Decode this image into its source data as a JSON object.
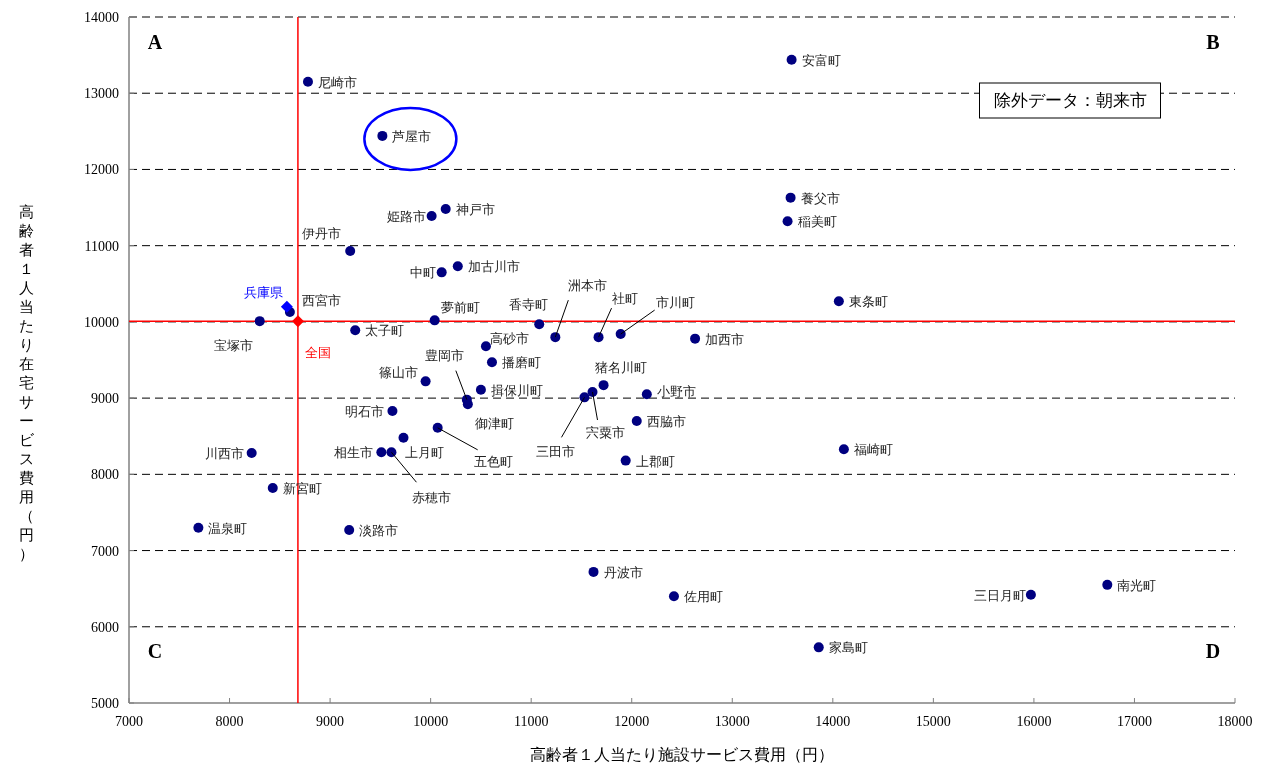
{
  "chart_data": {
    "type": "scatter",
    "xlabel": "高齢者１人当たり施設サービス費用（円）",
    "ylabel": "高齢者１人当たり在宅サービス費用（円）",
    "xlim": [
      7000,
      18000
    ],
    "xticks": [
      7000,
      8000,
      9000,
      10000,
      11000,
      12000,
      13000,
      14000,
      15000,
      16000,
      17000,
      18000
    ],
    "ylim": [
      5000,
      14000
    ],
    "yticks": [
      5000,
      6000,
      7000,
      8000,
      9000,
      10000,
      11000,
      12000,
      13000,
      14000
    ],
    "grid": "y",
    "legend": false,
    "series": [
      {
        "color": "#000080",
        "marker": "circle",
        "x": [
          8780,
          9520,
          13590,
          13580,
          13550,
          10150,
          10010,
          9200,
          10110,
          10270,
          14060,
          8300,
          8600,
          9250,
          10040,
          11080,
          11240,
          11670,
          11890,
          12630,
          10550,
          10610,
          9950,
          10500,
          11720,
          11610,
          11530,
          12150,
          10360,
          10370,
          9620,
          12050,
          10070,
          9730,
          9510,
          9610,
          8220,
          14110,
          11940,
          8430,
          7690,
          9190,
          11620,
          12420,
          15970,
          16730,
          13860
        ],
        "values": [
          13150,
          12440,
          13440,
          11630,
          11320,
          11480,
          11390,
          10930,
          10650,
          10730,
          10270,
          10010,
          10130,
          9890,
          10020,
          9970,
          9800,
          9800,
          9840,
          9780,
          9680,
          9470,
          9220,
          9110,
          9170,
          9080,
          9010,
          9050,
          8980,
          8920,
          8830,
          8700,
          8610,
          8480,
          8290,
          8290,
          8280,
          8330,
          8180,
          7820,
          7300,
          7270,
          6720,
          6400,
          6420,
          6550,
          5730
        ]
      },
      {
        "name": "兵庫県",
        "color": "#0000ff",
        "marker": "diamond",
        "x": [
          8570
        ],
        "values": [
          10200
        ]
      },
      {
        "name": "全国",
        "color": "#ff0000",
        "marker": "diamond",
        "x": [
          8680
        ],
        "values": [
          10010
        ]
      }
    ],
    "ref_lines": [
      {
        "axis": "x",
        "value": 8680,
        "color": "#ff0000"
      },
      {
        "axis": "y",
        "value": 10010,
        "color": "#ff0000"
      }
    ],
    "annotations": [
      "A",
      "B",
      "C",
      "D",
      "除外データ：朝来市",
      {
        "text": "尼崎市",
        "x": 8780,
        "y": 13150
      },
      {
        "text": "芦屋市",
        "x": 9520,
        "y": 12440
      },
      {
        "text": "安富町",
        "x": 13590,
        "y": 13440
      },
      {
        "text": "養父市",
        "x": 13580,
        "y": 11630
      },
      {
        "text": "稲美町",
        "x": 13550,
        "y": 11320
      },
      {
        "text": "神戸市",
        "x": 10150,
        "y": 11480
      },
      {
        "text": "姫路市",
        "x": 10010,
        "y": 11390
      },
      {
        "text": "伊丹市",
        "x": 9200,
        "y": 10930
      },
      {
        "text": "中町",
        "x": 10110,
        "y": 10650
      },
      {
        "text": "加古川市",
        "x": 10270,
        "y": 10730
      },
      {
        "text": "東条町",
        "x": 14060,
        "y": 10270
      },
      {
        "text": "宝塚市",
        "x": 8300,
        "y": 10010
      },
      {
        "text": "西宮市",
        "x": 8600,
        "y": 10130
      },
      {
        "text": "太子町",
        "x": 9250,
        "y": 9890
      },
      {
        "text": "夢前町",
        "x": 10040,
        "y": 10020
      },
      {
        "text": "香寺町",
        "x": 11080,
        "y": 9970
      },
      {
        "text": "洲本市",
        "x": 11240,
        "y": 9800
      },
      {
        "text": "社町",
        "x": 11670,
        "y": 9800
      },
      {
        "text": "市川町",
        "x": 11890,
        "y": 9840
      },
      {
        "text": "加西市",
        "x": 12630,
        "y": 9780
      },
      {
        "text": "高砂市",
        "x": 10550,
        "y": 9680
      },
      {
        "text": "播磨町",
        "x": 10610,
        "y": 9470
      },
      {
        "text": "篠山市",
        "x": 9950,
        "y": 9220
      },
      {
        "text": "揖保川町",
        "x": 10500,
        "y": 9110
      },
      {
        "text": "猪名川町",
        "x": 11720,
        "y": 9170
      },
      {
        "text": "宍粟市",
        "x": 11610,
        "y": 9080
      },
      {
        "text": "三田市",
        "x": 11530,
        "y": 9010
      },
      {
        "text": "小野市",
        "x": 12150,
        "y": 9050
      },
      {
        "text": "豊岡市",
        "x": 10360,
        "y": 8980
      },
      {
        "text": "御津町",
        "x": 10370,
        "y": 8920
      },
      {
        "text": "明石市",
        "x": 9620,
        "y": 8830
      },
      {
        "text": "西脇市",
        "x": 12050,
        "y": 8700
      },
      {
        "text": "五色町",
        "x": 10070,
        "y": 8610
      },
      {
        "text": "上月町",
        "x": 9730,
        "y": 8480
      },
      {
        "text": "相生市",
        "x": 9510,
        "y": 8290
      },
      {
        "text": "赤穂市",
        "x": 9610,
        "y": 8290
      },
      {
        "text": "川西市",
        "x": 8220,
        "y": 8280
      },
      {
        "text": "福崎町",
        "x": 14110,
        "y": 8330
      },
      {
        "text": "上郡町",
        "x": 11940,
        "y": 8180
      },
      {
        "text": "新宮町",
        "x": 8430,
        "y": 7820
      },
      {
        "text": "温泉町",
        "x": 7690,
        "y": 7300
      },
      {
        "text": "淡路市",
        "x": 9190,
        "y": 7270
      },
      {
        "text": "丹波市",
        "x": 11620,
        "y": 6720
      },
      {
        "text": "佐用町",
        "x": 12420,
        "y": 6400
      },
      {
        "text": "三日月町",
        "x": 15970,
        "y": 6420
      },
      {
        "text": "南光町",
        "x": 16730,
        "y": 6550
      },
      {
        "text": "家島町",
        "x": 13860,
        "y": 5730
      }
    ]
  }
}
